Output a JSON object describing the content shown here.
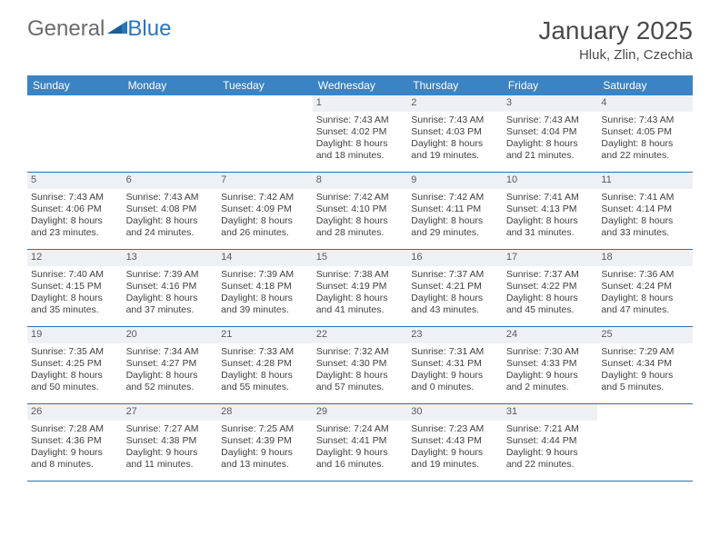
{
  "logo": {
    "text1": "General",
    "text2": "Blue"
  },
  "title": "January 2025",
  "location": "Hluk, Zlin, Czechia",
  "colors": {
    "header_bg": "#3a83c5",
    "header_text": "#ffffff",
    "daynum_bg": "#eef1f4",
    "week_border": "#2f6ea8",
    "logo_gray": "#6b6b6b",
    "logo_blue": "#2877bd"
  },
  "day_names": [
    "Sunday",
    "Monday",
    "Tuesday",
    "Wednesday",
    "Thursday",
    "Friday",
    "Saturday"
  ],
  "weeks": [
    [
      {
        "n": "",
        "l1": "",
        "l2": "",
        "l3": "",
        "l4": "",
        "empty": true
      },
      {
        "n": "",
        "l1": "",
        "l2": "",
        "l3": "",
        "l4": "",
        "empty": true
      },
      {
        "n": "",
        "l1": "",
        "l2": "",
        "l3": "",
        "l4": "",
        "empty": true
      },
      {
        "n": "1",
        "l1": "Sunrise: 7:43 AM",
        "l2": "Sunset: 4:02 PM",
        "l3": "Daylight: 8 hours",
        "l4": "and 18 minutes."
      },
      {
        "n": "2",
        "l1": "Sunrise: 7:43 AM",
        "l2": "Sunset: 4:03 PM",
        "l3": "Daylight: 8 hours",
        "l4": "and 19 minutes."
      },
      {
        "n": "3",
        "l1": "Sunrise: 7:43 AM",
        "l2": "Sunset: 4:04 PM",
        "l3": "Daylight: 8 hours",
        "l4": "and 21 minutes."
      },
      {
        "n": "4",
        "l1": "Sunrise: 7:43 AM",
        "l2": "Sunset: 4:05 PM",
        "l3": "Daylight: 8 hours",
        "l4": "and 22 minutes."
      }
    ],
    [
      {
        "n": "5",
        "l1": "Sunrise: 7:43 AM",
        "l2": "Sunset: 4:06 PM",
        "l3": "Daylight: 8 hours",
        "l4": "and 23 minutes."
      },
      {
        "n": "6",
        "l1": "Sunrise: 7:43 AM",
        "l2": "Sunset: 4:08 PM",
        "l3": "Daylight: 8 hours",
        "l4": "and 24 minutes."
      },
      {
        "n": "7",
        "l1": "Sunrise: 7:42 AM",
        "l2": "Sunset: 4:09 PM",
        "l3": "Daylight: 8 hours",
        "l4": "and 26 minutes."
      },
      {
        "n": "8",
        "l1": "Sunrise: 7:42 AM",
        "l2": "Sunset: 4:10 PM",
        "l3": "Daylight: 8 hours",
        "l4": "and 28 minutes."
      },
      {
        "n": "9",
        "l1": "Sunrise: 7:42 AM",
        "l2": "Sunset: 4:11 PM",
        "l3": "Daylight: 8 hours",
        "l4": "and 29 minutes."
      },
      {
        "n": "10",
        "l1": "Sunrise: 7:41 AM",
        "l2": "Sunset: 4:13 PM",
        "l3": "Daylight: 8 hours",
        "l4": "and 31 minutes."
      },
      {
        "n": "11",
        "l1": "Sunrise: 7:41 AM",
        "l2": "Sunset: 4:14 PM",
        "l3": "Daylight: 8 hours",
        "l4": "and 33 minutes."
      }
    ],
    [
      {
        "n": "12",
        "l1": "Sunrise: 7:40 AM",
        "l2": "Sunset: 4:15 PM",
        "l3": "Daylight: 8 hours",
        "l4": "and 35 minutes."
      },
      {
        "n": "13",
        "l1": "Sunrise: 7:39 AM",
        "l2": "Sunset: 4:16 PM",
        "l3": "Daylight: 8 hours",
        "l4": "and 37 minutes."
      },
      {
        "n": "14",
        "l1": "Sunrise: 7:39 AM",
        "l2": "Sunset: 4:18 PM",
        "l3": "Daylight: 8 hours",
        "l4": "and 39 minutes."
      },
      {
        "n": "15",
        "l1": "Sunrise: 7:38 AM",
        "l2": "Sunset: 4:19 PM",
        "l3": "Daylight: 8 hours",
        "l4": "and 41 minutes."
      },
      {
        "n": "16",
        "l1": "Sunrise: 7:37 AM",
        "l2": "Sunset: 4:21 PM",
        "l3": "Daylight: 8 hours",
        "l4": "and 43 minutes."
      },
      {
        "n": "17",
        "l1": "Sunrise: 7:37 AM",
        "l2": "Sunset: 4:22 PM",
        "l3": "Daylight: 8 hours",
        "l4": "and 45 minutes."
      },
      {
        "n": "18",
        "l1": "Sunrise: 7:36 AM",
        "l2": "Sunset: 4:24 PM",
        "l3": "Daylight: 8 hours",
        "l4": "and 47 minutes."
      }
    ],
    [
      {
        "n": "19",
        "l1": "Sunrise: 7:35 AM",
        "l2": "Sunset: 4:25 PM",
        "l3": "Daylight: 8 hours",
        "l4": "and 50 minutes."
      },
      {
        "n": "20",
        "l1": "Sunrise: 7:34 AM",
        "l2": "Sunset: 4:27 PM",
        "l3": "Daylight: 8 hours",
        "l4": "and 52 minutes."
      },
      {
        "n": "21",
        "l1": "Sunrise: 7:33 AM",
        "l2": "Sunset: 4:28 PM",
        "l3": "Daylight: 8 hours",
        "l4": "and 55 minutes."
      },
      {
        "n": "22",
        "l1": "Sunrise: 7:32 AM",
        "l2": "Sunset: 4:30 PM",
        "l3": "Daylight: 8 hours",
        "l4": "and 57 minutes."
      },
      {
        "n": "23",
        "l1": "Sunrise: 7:31 AM",
        "l2": "Sunset: 4:31 PM",
        "l3": "Daylight: 9 hours",
        "l4": "and 0 minutes."
      },
      {
        "n": "24",
        "l1": "Sunrise: 7:30 AM",
        "l2": "Sunset: 4:33 PM",
        "l3": "Daylight: 9 hours",
        "l4": "and 2 minutes."
      },
      {
        "n": "25",
        "l1": "Sunrise: 7:29 AM",
        "l2": "Sunset: 4:34 PM",
        "l3": "Daylight: 9 hours",
        "l4": "and 5 minutes."
      }
    ],
    [
      {
        "n": "26",
        "l1": "Sunrise: 7:28 AM",
        "l2": "Sunset: 4:36 PM",
        "l3": "Daylight: 9 hours",
        "l4": "and 8 minutes."
      },
      {
        "n": "27",
        "l1": "Sunrise: 7:27 AM",
        "l2": "Sunset: 4:38 PM",
        "l3": "Daylight: 9 hours",
        "l4": "and 11 minutes."
      },
      {
        "n": "28",
        "l1": "Sunrise: 7:25 AM",
        "l2": "Sunset: 4:39 PM",
        "l3": "Daylight: 9 hours",
        "l4": "and 13 minutes."
      },
      {
        "n": "29",
        "l1": "Sunrise: 7:24 AM",
        "l2": "Sunset: 4:41 PM",
        "l3": "Daylight: 9 hours",
        "l4": "and 16 minutes."
      },
      {
        "n": "30",
        "l1": "Sunrise: 7:23 AM",
        "l2": "Sunset: 4:43 PM",
        "l3": "Daylight: 9 hours",
        "l4": "and 19 minutes."
      },
      {
        "n": "31",
        "l1": "Sunrise: 7:21 AM",
        "l2": "Sunset: 4:44 PM",
        "l3": "Daylight: 9 hours",
        "l4": "and 22 minutes."
      },
      {
        "n": "",
        "l1": "",
        "l2": "",
        "l3": "",
        "l4": "",
        "empty": true
      }
    ]
  ]
}
